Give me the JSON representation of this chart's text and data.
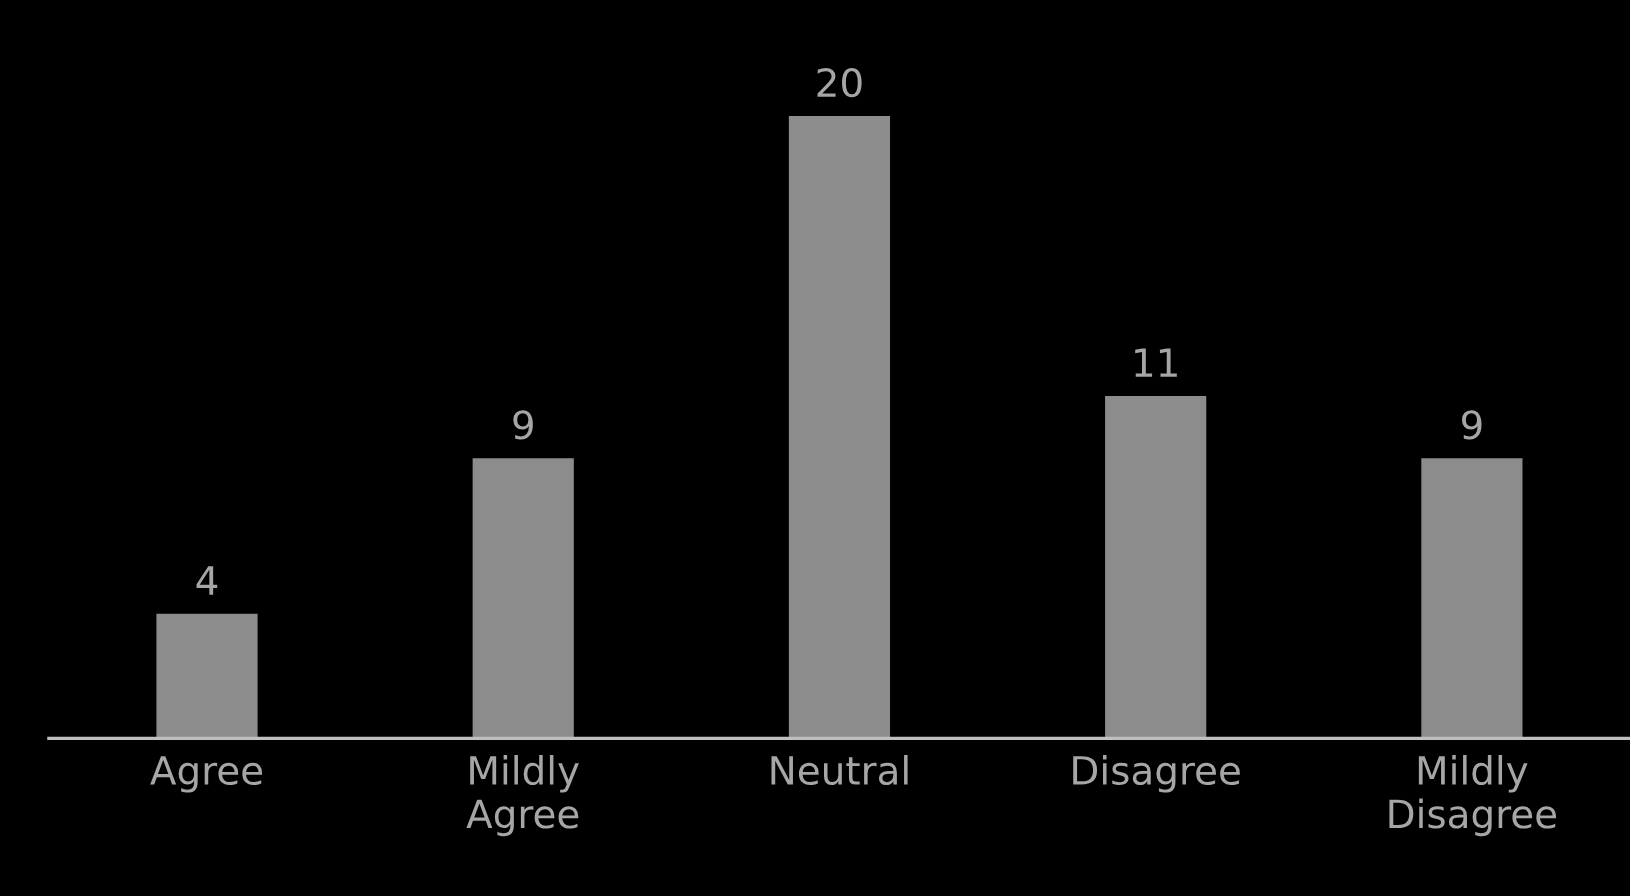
{
  "chart_data": {
    "type": "bar",
    "categories": [
      "Agree",
      "Mildly\nAgree",
      "Neutral",
      "Disagree",
      "Mildly\nDisagree"
    ],
    "values": [
      4,
      9,
      20,
      11,
      9
    ],
    "color": "#8c8c8c",
    "data_labels": true,
    "grid": false,
    "legend": false
  }
}
